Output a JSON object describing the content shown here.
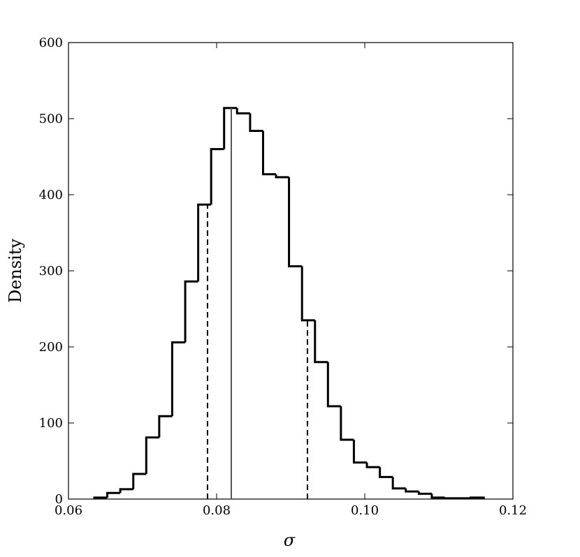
{
  "chart_data": {
    "type": "histogram",
    "x_label": "σ",
    "y_label": "Density",
    "bins": [
      0.06349,
      0.06524,
      0.06699,
      0.06875,
      0.0705,
      0.07225,
      0.074,
      0.07576,
      0.07751,
      0.07926,
      0.08101,
      0.08276,
      0.08452,
      0.08627,
      0.08802,
      0.08977,
      0.09153,
      0.09328,
      0.09503,
      0.09678,
      0.09853,
      0.10029,
      0.10204,
      0.10379,
      0.10554,
      0.1073,
      0.10905,
      0.1108,
      0.11255,
      0.1143,
      0.11606
    ],
    "values": [
      2,
      8,
      13,
      33,
      81,
      109,
      206,
      286,
      387,
      460,
      514,
      507,
      484,
      427,
      423,
      306,
      235,
      180,
      122,
      78,
      48,
      42,
      29,
      14,
      10,
      7,
      2,
      1,
      1,
      2
    ],
    "color": "#000000",
    "vlines": [
      {
        "x": 0.08198,
        "style": "solid",
        "color": "#555555"
      },
      {
        "x": 0.07877,
        "style": "dashed",
        "color": "#000000"
      },
      {
        "x": 0.09226,
        "style": "dashed",
        "color": "#000000"
      }
    ],
    "xlim": [
      0.06,
      0.12
    ],
    "xticks": [
      0.06,
      0.08,
      {
        "value": 0.1,
        "label": "0.10"
      },
      0.12
    ],
    "ylim": [
      0,
      600
    ],
    "yticks": [
      0,
      100,
      200,
      300,
      400,
      500,
      600
    ],
    "grid": false
  }
}
